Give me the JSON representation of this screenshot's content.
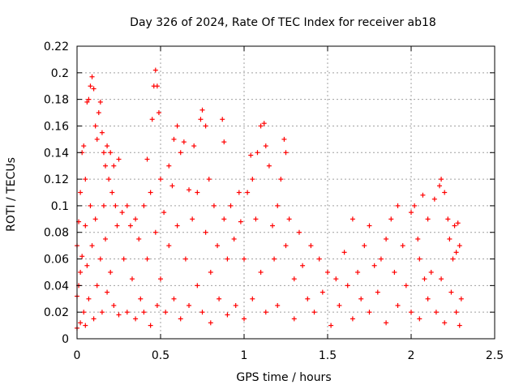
{
  "chart_data": {
    "type": "scatter",
    "title": "Day 326 of 2024, Rate Of TEC Index for receiver ab18",
    "xlabel": "GPS time / hours",
    "ylabel": "ROTI / TECUs",
    "xlim": [
      0,
      2.5
    ],
    "ylim": [
      0,
      0.22
    ],
    "xticks": [
      "0",
      "0.5",
      "1",
      "1.5",
      "2",
      "2.5"
    ],
    "yticks": [
      "0",
      "0.02",
      "0.04",
      "0.06",
      "0.08",
      "0.1",
      "0.12",
      "0.14",
      "0.16",
      "0.18",
      "0.2",
      "0.22"
    ],
    "grid": true,
    "marker": "+",
    "color": "#ff0000",
    "series": [
      {
        "name": "ROTI",
        "points": [
          [
            0.0,
            0.008
          ],
          [
            0.0,
            0.032
          ],
          [
            0.0,
            0.07
          ],
          [
            0.01,
            0.088
          ],
          [
            0.01,
            0.04
          ],
          [
            0.02,
            0.11
          ],
          [
            0.02,
            0.05
          ],
          [
            0.02,
            0.012
          ],
          [
            0.03,
            0.14
          ],
          [
            0.03,
            0.062
          ],
          [
            0.04,
            0.145
          ],
          [
            0.04,
            0.02
          ],
          [
            0.05,
            0.12
          ],
          [
            0.05,
            0.085
          ],
          [
            0.05,
            0.01
          ],
          [
            0.06,
            0.178
          ],
          [
            0.06,
            0.055
          ],
          [
            0.07,
            0.18
          ],
          [
            0.07,
            0.03
          ],
          [
            0.08,
            0.19
          ],
          [
            0.08,
            0.1
          ],
          [
            0.09,
            0.197
          ],
          [
            0.09,
            0.07
          ],
          [
            0.1,
            0.188
          ],
          [
            0.1,
            0.015
          ],
          [
            0.11,
            0.16
          ],
          [
            0.11,
            0.09
          ],
          [
            0.12,
            0.15
          ],
          [
            0.12,
            0.04
          ],
          [
            0.13,
            0.17
          ],
          [
            0.14,
            0.178
          ],
          [
            0.14,
            0.06
          ],
          [
            0.15,
            0.155
          ],
          [
            0.15,
            0.02
          ],
          [
            0.16,
            0.14
          ],
          [
            0.16,
            0.1
          ],
          [
            0.17,
            0.13
          ],
          [
            0.17,
            0.075
          ],
          [
            0.18,
            0.145
          ],
          [
            0.18,
            0.035
          ],
          [
            0.19,
            0.12
          ],
          [
            0.2,
            0.14
          ],
          [
            0.2,
            0.05
          ],
          [
            0.21,
            0.11
          ],
          [
            0.22,
            0.13
          ],
          [
            0.22,
            0.025
          ],
          [
            0.23,
            0.1
          ],
          [
            0.24,
            0.085
          ],
          [
            0.25,
            0.135
          ],
          [
            0.25,
            0.018
          ],
          [
            0.27,
            0.095
          ],
          [
            0.28,
            0.06
          ],
          [
            0.3,
            0.1
          ],
          [
            0.3,
            0.02
          ],
          [
            0.32,
            0.085
          ],
          [
            0.33,
            0.045
          ],
          [
            0.35,
            0.09
          ],
          [
            0.35,
            0.015
          ],
          [
            0.37,
            0.075
          ],
          [
            0.38,
            0.03
          ],
          [
            0.4,
            0.1
          ],
          [
            0.4,
            0.02
          ],
          [
            0.42,
            0.135
          ],
          [
            0.42,
            0.06
          ],
          [
            0.44,
            0.11
          ],
          [
            0.44,
            0.01
          ],
          [
            0.45,
            0.165
          ],
          [
            0.46,
            0.19
          ],
          [
            0.47,
            0.202
          ],
          [
            0.47,
            0.08
          ],
          [
            0.48,
            0.19
          ],
          [
            0.48,
            0.025
          ],
          [
            0.49,
            0.17
          ],
          [
            0.5,
            0.12
          ],
          [
            0.5,
            0.045
          ],
          [
            0.52,
            0.095
          ],
          [
            0.53,
            0.02
          ],
          [
            0.55,
            0.13
          ],
          [
            0.55,
            0.07
          ],
          [
            0.57,
            0.115
          ],
          [
            0.58,
            0.15
          ],
          [
            0.58,
            0.03
          ],
          [
            0.6,
            0.16
          ],
          [
            0.6,
            0.085
          ],
          [
            0.62,
            0.14
          ],
          [
            0.62,
            0.015
          ],
          [
            0.64,
            0.148
          ],
          [
            0.65,
            0.06
          ],
          [
            0.67,
            0.112
          ],
          [
            0.67,
            0.025
          ],
          [
            0.69,
            0.09
          ],
          [
            0.7,
            0.145
          ],
          [
            0.72,
            0.11
          ],
          [
            0.72,
            0.04
          ],
          [
            0.74,
            0.165
          ],
          [
            0.75,
            0.172
          ],
          [
            0.75,
            0.02
          ],
          [
            0.77,
            0.16
          ],
          [
            0.77,
            0.08
          ],
          [
            0.79,
            0.12
          ],
          [
            0.8,
            0.05
          ],
          [
            0.8,
            0.012
          ],
          [
            0.82,
            0.1
          ],
          [
            0.84,
            0.07
          ],
          [
            0.85,
            0.03
          ],
          [
            0.87,
            0.165
          ],
          [
            0.88,
            0.148
          ],
          [
            0.88,
            0.09
          ],
          [
            0.9,
            0.06
          ],
          [
            0.9,
            0.018
          ],
          [
            0.92,
            0.1
          ],
          [
            0.94,
            0.075
          ],
          [
            0.95,
            0.025
          ],
          [
            0.97,
            0.11
          ],
          [
            0.98,
            0.088
          ],
          [
            1.0,
            0.06
          ],
          [
            1.0,
            0.015
          ],
          [
            1.02,
            0.11
          ],
          [
            1.04,
            0.138
          ],
          [
            1.05,
            0.12
          ],
          [
            1.05,
            0.03
          ],
          [
            1.07,
            0.09
          ],
          [
            1.08,
            0.14
          ],
          [
            1.1,
            0.16
          ],
          [
            1.1,
            0.05
          ],
          [
            1.12,
            0.162
          ],
          [
            1.13,
            0.145
          ],
          [
            1.13,
            0.02
          ],
          [
            1.15,
            0.13
          ],
          [
            1.17,
            0.085
          ],
          [
            1.18,
            0.06
          ],
          [
            1.2,
            0.1
          ],
          [
            1.2,
            0.025
          ],
          [
            1.22,
            0.12
          ],
          [
            1.24,
            0.15
          ],
          [
            1.25,
            0.14
          ],
          [
            1.25,
            0.07
          ],
          [
            1.27,
            0.09
          ],
          [
            1.3,
            0.045
          ],
          [
            1.3,
            0.015
          ],
          [
            1.33,
            0.08
          ],
          [
            1.35,
            0.055
          ],
          [
            1.38,
            0.03
          ],
          [
            1.4,
            0.07
          ],
          [
            1.42,
            0.02
          ],
          [
            1.45,
            0.06
          ],
          [
            1.47,
            0.035
          ],
          [
            1.5,
            0.05
          ],
          [
            1.52,
            0.01
          ],
          [
            1.55,
            0.045
          ],
          [
            1.57,
            0.025
          ],
          [
            1.6,
            0.065
          ],
          [
            1.62,
            0.04
          ],
          [
            1.65,
            0.09
          ],
          [
            1.65,
            0.015
          ],
          [
            1.68,
            0.05
          ],
          [
            1.7,
            0.03
          ],
          [
            1.72,
            0.07
          ],
          [
            1.75,
            0.085
          ],
          [
            1.75,
            0.02
          ],
          [
            1.78,
            0.055
          ],
          [
            1.8,
            0.035
          ],
          [
            1.82,
            0.06
          ],
          [
            1.85,
            0.075
          ],
          [
            1.85,
            0.012
          ],
          [
            1.88,
            0.09
          ],
          [
            1.9,
            0.05
          ],
          [
            1.92,
            0.1
          ],
          [
            1.92,
            0.025
          ],
          [
            1.95,
            0.07
          ],
          [
            1.97,
            0.04
          ],
          [
            2.0,
            0.095
          ],
          [
            2.0,
            0.02
          ],
          [
            2.02,
            0.1
          ],
          [
            2.04,
            0.075
          ],
          [
            2.05,
            0.06
          ],
          [
            2.05,
            0.015
          ],
          [
            2.07,
            0.108
          ],
          [
            2.08,
            0.045
          ],
          [
            2.1,
            0.09
          ],
          [
            2.1,
            0.03
          ],
          [
            2.12,
            0.05
          ],
          [
            2.14,
            0.105
          ],
          [
            2.15,
            0.02
          ],
          [
            2.17,
            0.115
          ],
          [
            2.18,
            0.12
          ],
          [
            2.18,
            0.045
          ],
          [
            2.2,
            0.11
          ],
          [
            2.2,
            0.012
          ],
          [
            2.22,
            0.09
          ],
          [
            2.23,
            0.075
          ],
          [
            2.24,
            0.035
          ],
          [
            2.25,
            0.06
          ],
          [
            2.26,
            0.085
          ],
          [
            2.27,
            0.065
          ],
          [
            2.27,
            0.02
          ],
          [
            2.28,
            0.087
          ],
          [
            2.29,
            0.07
          ],
          [
            2.29,
            0.01
          ],
          [
            2.3,
            0.03
          ]
        ]
      }
    ]
  }
}
